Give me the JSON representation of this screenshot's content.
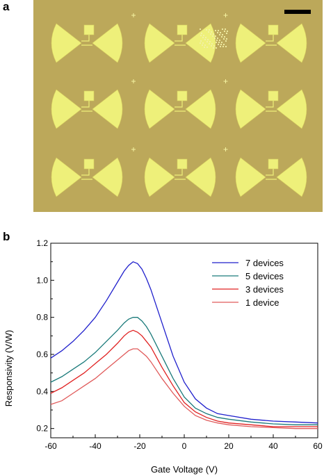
{
  "panels": {
    "a": {
      "label": "a"
    },
    "b": {
      "label": "b"
    }
  },
  "micrograph": {
    "background_color": "#bca85a",
    "pad_color": "#eef07a",
    "scale_bar_color": "#000000"
  },
  "chart_data": {
    "type": "line",
    "xlabel": "Gate Voltage (V)",
    "ylabel": "Responsivity (V/W)",
    "xlim": [
      -60,
      60
    ],
    "ylim": [
      0.15,
      1.2
    ],
    "xticks": [
      -60,
      -40,
      -20,
      0,
      20,
      40,
      60
    ],
    "xtick_labels": [
      "-60",
      "-40",
      "-20",
      "0",
      "20",
      "40",
      "60"
    ],
    "yticks": [
      0.2,
      0.4,
      0.6,
      0.8,
      1.0,
      1.2
    ],
    "ytick_labels": [
      "0.2",
      "0.4",
      "0.6",
      "0.8",
      "1.0",
      "1.2"
    ],
    "grid": false,
    "legend_position": "top-right",
    "x": [
      -60,
      -55,
      -50,
      -45,
      -40,
      -35,
      -30,
      -27,
      -25,
      -23,
      -21,
      -19,
      -17,
      -15,
      -10,
      -5,
      0,
      5,
      10,
      15,
      20,
      30,
      40,
      50,
      60
    ],
    "series": [
      {
        "name": "7 devices",
        "color": "#1f1fcc",
        "values": [
          0.58,
          0.62,
          0.67,
          0.73,
          0.8,
          0.89,
          0.99,
          1.05,
          1.08,
          1.1,
          1.09,
          1.06,
          1.01,
          0.95,
          0.77,
          0.59,
          0.45,
          0.36,
          0.31,
          0.28,
          0.27,
          0.25,
          0.24,
          0.235,
          0.23
        ]
      },
      {
        "name": "5 devices",
        "color": "#1a7a7a",
        "values": [
          0.45,
          0.48,
          0.52,
          0.56,
          0.61,
          0.67,
          0.73,
          0.77,
          0.79,
          0.8,
          0.8,
          0.78,
          0.75,
          0.71,
          0.59,
          0.47,
          0.37,
          0.31,
          0.28,
          0.26,
          0.25,
          0.235,
          0.225,
          0.22,
          0.22
        ]
      },
      {
        "name": "3 devices",
        "color": "#e02020",
        "values": [
          0.39,
          0.42,
          0.46,
          0.5,
          0.55,
          0.6,
          0.66,
          0.7,
          0.72,
          0.73,
          0.72,
          0.7,
          0.67,
          0.64,
          0.53,
          0.43,
          0.34,
          0.29,
          0.26,
          0.24,
          0.23,
          0.22,
          0.21,
          0.21,
          0.21
        ]
      },
      {
        "name": "1 device",
        "color": "#e05a5a",
        "values": [
          0.33,
          0.35,
          0.39,
          0.43,
          0.47,
          0.52,
          0.57,
          0.6,
          0.62,
          0.63,
          0.63,
          0.61,
          0.59,
          0.56,
          0.47,
          0.39,
          0.32,
          0.27,
          0.245,
          0.23,
          0.22,
          0.21,
          0.205,
          0.2,
          0.2
        ]
      }
    ]
  }
}
